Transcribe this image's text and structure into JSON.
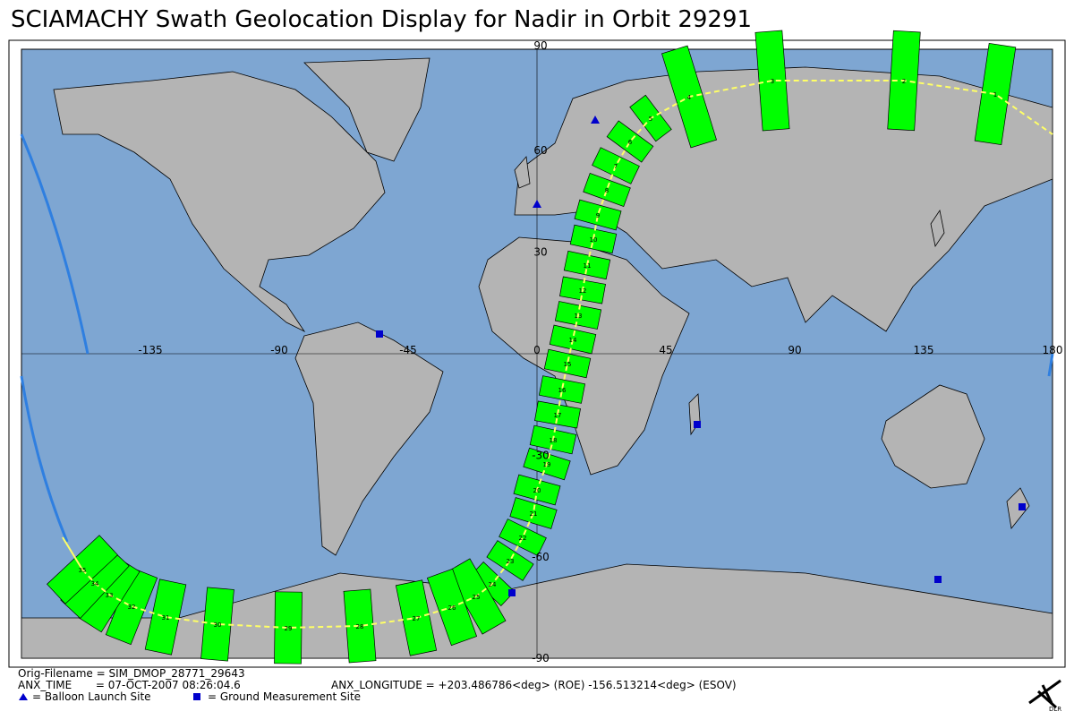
{
  "title": "SCIAMACHY Swath Geolocation Display for Nadir in Orbit 29291",
  "lat_labels": [
    90,
    60,
    30,
    -30,
    -60,
    -90
  ],
  "lon_labels": [
    -135,
    -90,
    -45,
    0,
    45,
    90,
    135,
    180
  ],
  "swaths": [
    1,
    2,
    3,
    4,
    5,
    6,
    7,
    8,
    9,
    10,
    11,
    12,
    13,
    14,
    15,
    16,
    17,
    18,
    19,
    20,
    21,
    22,
    23,
    24,
    25,
    26,
    27,
    28,
    29,
    30,
    31,
    32,
    33,
    34,
    35
  ],
  "footer": {
    "filename": "Orig-Filename = SIM_DMOP_28771_29643",
    "anx_time": "ANX_TIME       = 07-OCT-2007 08:26:04.6",
    "anx_longitude": "ANX_LONGITUDE = +203.486786<deg> (ROE) -156.513214<deg> (ESOV)",
    "balloon": "= Balloon Launch Site",
    "ground": "= Ground Measurement Site",
    "logo": "DLR"
  }
}
